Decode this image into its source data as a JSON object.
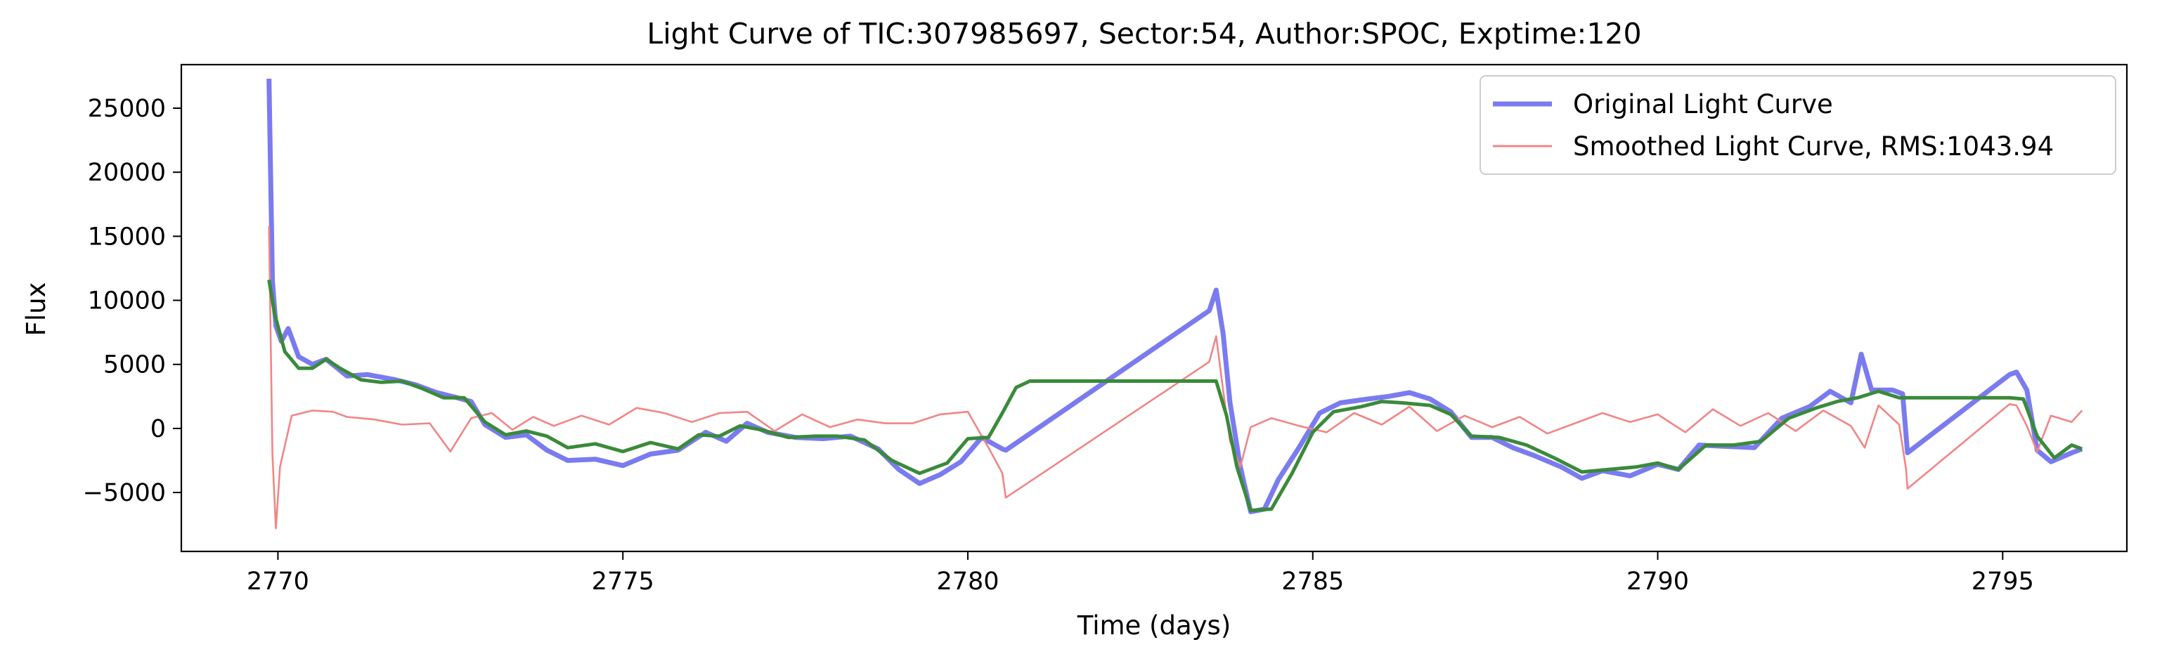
{
  "chart_data": {
    "type": "line",
    "title": "Light Curve of TIC:307985697, Sector:54, Author:SPOC, Exptime:120",
    "xlabel": "Time (days)",
    "ylabel": "Flux",
    "xlim": [
      2768.6,
      2796.8
    ],
    "ylim": [
      -9600,
      28400
    ],
    "xticks": [
      2770,
      2775,
      2780,
      2785,
      2790,
      2795
    ],
    "yticks": [
      -5000,
      0,
      5000,
      10000,
      15000,
      20000,
      25000
    ],
    "grid": false,
    "legend_position": "top-right",
    "series": [
      {
        "name": "Original Light Curve",
        "color": "#7b7bf0",
        "points": [
          [
            2769.87,
            27300
          ],
          [
            2769.92,
            11500
          ],
          [
            2769.97,
            8000
          ],
          [
            2770.05,
            6800
          ],
          [
            2770.15,
            7800
          ],
          [
            2770.3,
            5600
          ],
          [
            2770.5,
            5000
          ],
          [
            2770.7,
            5400
          ],
          [
            2771.0,
            4100
          ],
          [
            2771.3,
            4200
          ],
          [
            2771.7,
            3800
          ],
          [
            2772.0,
            3400
          ],
          [
            2772.3,
            2800
          ],
          [
            2772.6,
            2400
          ],
          [
            2772.8,
            2100
          ],
          [
            2773.0,
            300
          ],
          [
            2773.3,
            -700
          ],
          [
            2773.6,
            -500
          ],
          [
            2773.9,
            -1700
          ],
          [
            2774.2,
            -2500
          ],
          [
            2774.6,
            -2400
          ],
          [
            2775.0,
            -2900
          ],
          [
            2775.4,
            -2000
          ],
          [
            2775.8,
            -1700
          ],
          [
            2776.2,
            -300
          ],
          [
            2776.5,
            -1000
          ],
          [
            2776.8,
            400
          ],
          [
            2777.1,
            -300
          ],
          [
            2777.5,
            -700
          ],
          [
            2777.9,
            -800
          ],
          [
            2778.3,
            -600
          ],
          [
            2778.7,
            -1600
          ],
          [
            2779.0,
            -3200
          ],
          [
            2779.3,
            -4300
          ],
          [
            2779.6,
            -3600
          ],
          [
            2779.9,
            -2600
          ],
          [
            2780.2,
            -700
          ],
          [
            2780.5,
            -1600
          ],
          [
            2780.55,
            -1700
          ],
          [
            2783.5,
            9200
          ],
          [
            2783.6,
            10800
          ],
          [
            2783.7,
            7400
          ],
          [
            2783.8,
            2000
          ],
          [
            2783.95,
            -3000
          ],
          [
            2784.1,
            -6500
          ],
          [
            2784.3,
            -6300
          ],
          [
            2784.5,
            -4000
          ],
          [
            2784.8,
            -1500
          ],
          [
            2785.1,
            1200
          ],
          [
            2785.4,
            2000
          ],
          [
            2785.8,
            2300
          ],
          [
            2786.1,
            2500
          ],
          [
            2786.4,
            2800
          ],
          [
            2786.7,
            2300
          ],
          [
            2787.0,
            1300
          ],
          [
            2787.3,
            -700
          ],
          [
            2787.6,
            -700
          ],
          [
            2787.9,
            -1500
          ],
          [
            2788.2,
            -2100
          ],
          [
            2788.6,
            -3000
          ],
          [
            2788.9,
            -3900
          ],
          [
            2789.2,
            -3300
          ],
          [
            2789.6,
            -3700
          ],
          [
            2790.0,
            -2800
          ],
          [
            2790.3,
            -3200
          ],
          [
            2790.6,
            -1300
          ],
          [
            2791.0,
            -1400
          ],
          [
            2791.4,
            -1500
          ],
          [
            2791.8,
            800
          ],
          [
            2792.2,
            1700
          ],
          [
            2792.5,
            2900
          ],
          [
            2792.8,
            2000
          ],
          [
            2792.95,
            5800
          ],
          [
            2793.1,
            3000
          ],
          [
            2793.4,
            3000
          ],
          [
            2793.55,
            2700
          ],
          [
            2793.62,
            -1900
          ],
          [
            2795.1,
            4200
          ],
          [
            2795.2,
            4400
          ],
          [
            2795.35,
            3000
          ],
          [
            2795.5,
            -1700
          ],
          [
            2795.7,
            -2600
          ],
          [
            2796.0,
            -1900
          ],
          [
            2796.15,
            -1600
          ]
        ]
      },
      {
        "name": "Smoothed Light Curve, RMS:1043.94",
        "color": "#f28585",
        "points": [
          [
            2769.87,
            15800
          ],
          [
            2769.92,
            -2000
          ],
          [
            2769.97,
            -7800
          ],
          [
            2770.03,
            -3000
          ],
          [
            2770.2,
            1000
          ],
          [
            2770.5,
            1400
          ],
          [
            2770.8,
            1300
          ],
          [
            2771.0,
            900
          ],
          [
            2771.4,
            700
          ],
          [
            2771.8,
            300
          ],
          [
            2772.2,
            400
          ],
          [
            2772.5,
            -1800
          ],
          [
            2772.8,
            800
          ],
          [
            2773.1,
            1200
          ],
          [
            2773.4,
            -100
          ],
          [
            2773.7,
            900
          ],
          [
            2774.0,
            200
          ],
          [
            2774.4,
            1000
          ],
          [
            2774.8,
            300
          ],
          [
            2775.2,
            1600
          ],
          [
            2775.6,
            1200
          ],
          [
            2776.0,
            500
          ],
          [
            2776.4,
            1200
          ],
          [
            2776.8,
            1300
          ],
          [
            2777.2,
            -200
          ],
          [
            2777.6,
            1100
          ],
          [
            2778.0,
            100
          ],
          [
            2778.4,
            700
          ],
          [
            2778.8,
            400
          ],
          [
            2779.2,
            400
          ],
          [
            2779.6,
            1100
          ],
          [
            2780.0,
            1300
          ],
          [
            2780.3,
            -1500
          ],
          [
            2780.5,
            -3500
          ],
          [
            2780.55,
            -5400
          ],
          [
            2783.5,
            5200
          ],
          [
            2783.6,
            7200
          ],
          [
            2783.7,
            3000
          ],
          [
            2783.8,
            -1000
          ],
          [
            2783.95,
            -3000
          ],
          [
            2784.1,
            100
          ],
          [
            2784.4,
            800
          ],
          [
            2784.8,
            200
          ],
          [
            2785.2,
            -300
          ],
          [
            2785.6,
            1200
          ],
          [
            2786.0,
            300
          ],
          [
            2786.4,
            1700
          ],
          [
            2786.8,
            -200
          ],
          [
            2787.2,
            1000
          ],
          [
            2787.6,
            100
          ],
          [
            2788.0,
            900
          ],
          [
            2788.4,
            -400
          ],
          [
            2788.8,
            400
          ],
          [
            2789.2,
            1200
          ],
          [
            2789.6,
            500
          ],
          [
            2790.0,
            1100
          ],
          [
            2790.4,
            -300
          ],
          [
            2790.8,
            1500
          ],
          [
            2791.2,
            200
          ],
          [
            2791.6,
            1200
          ],
          [
            2792.0,
            -200
          ],
          [
            2792.4,
            1400
          ],
          [
            2792.8,
            200
          ],
          [
            2793.0,
            -1500
          ],
          [
            2793.2,
            1800
          ],
          [
            2793.5,
            300
          ],
          [
            2793.6,
            -3200
          ],
          [
            2793.62,
            -4700
          ],
          [
            2795.1,
            1900
          ],
          [
            2795.2,
            1800
          ],
          [
            2795.35,
            200
          ],
          [
            2795.5,
            -1800
          ],
          [
            2795.7,
            1000
          ],
          [
            2796.0,
            500
          ],
          [
            2796.15,
            1400
          ]
        ]
      },
      {
        "name": "",
        "color": "#3a8a3a",
        "points": [
          [
            2769.87,
            11600
          ],
          [
            2769.95,
            9000
          ],
          [
            2770.1,
            6000
          ],
          [
            2770.3,
            4700
          ],
          [
            2770.5,
            4700
          ],
          [
            2770.7,
            5400
          ],
          [
            2770.9,
            4700
          ],
          [
            2771.2,
            3800
          ],
          [
            2771.5,
            3600
          ],
          [
            2771.8,
            3700
          ],
          [
            2772.1,
            3100
          ],
          [
            2772.4,
            2400
          ],
          [
            2772.7,
            2400
          ],
          [
            2773.0,
            500
          ],
          [
            2773.3,
            -500
          ],
          [
            2773.6,
            -200
          ],
          [
            2773.9,
            -600
          ],
          [
            2774.2,
            -1500
          ],
          [
            2774.6,
            -1200
          ],
          [
            2775.0,
            -1800
          ],
          [
            2775.4,
            -1100
          ],
          [
            2775.8,
            -1600
          ],
          [
            2776.1,
            -500
          ],
          [
            2776.4,
            -600
          ],
          [
            2776.7,
            200
          ],
          [
            2777.0,
            -100
          ],
          [
            2777.4,
            -700
          ],
          [
            2777.8,
            -600
          ],
          [
            2778.1,
            -600
          ],
          [
            2778.5,
            -900
          ],
          [
            2778.9,
            -2500
          ],
          [
            2779.3,
            -3500
          ],
          [
            2779.7,
            -2700
          ],
          [
            2780.0,
            -800
          ],
          [
            2780.3,
            -700
          ],
          [
            2780.5,
            1200
          ],
          [
            2780.7,
            3200
          ],
          [
            2780.9,
            3700
          ],
          [
            2783.4,
            3700
          ],
          [
            2783.6,
            3700
          ],
          [
            2783.75,
            1000
          ],
          [
            2783.9,
            -3000
          ],
          [
            2784.1,
            -6400
          ],
          [
            2784.4,
            -6300
          ],
          [
            2784.7,
            -3500
          ],
          [
            2785.0,
            -300
          ],
          [
            2785.3,
            1300
          ],
          [
            2785.7,
            1700
          ],
          [
            2786.0,
            2100
          ],
          [
            2786.3,
            2000
          ],
          [
            2786.7,
            1800
          ],
          [
            2787.0,
            1100
          ],
          [
            2787.3,
            -600
          ],
          [
            2787.7,
            -700
          ],
          [
            2788.1,
            -1300
          ],
          [
            2788.5,
            -2300
          ],
          [
            2788.9,
            -3400
          ],
          [
            2789.3,
            -3200
          ],
          [
            2789.7,
            -3000
          ],
          [
            2790.0,
            -2700
          ],
          [
            2790.3,
            -3200
          ],
          [
            2790.7,
            -1300
          ],
          [
            2791.1,
            -1300
          ],
          [
            2791.5,
            -1000
          ],
          [
            2791.9,
            800
          ],
          [
            2792.3,
            1600
          ],
          [
            2792.6,
            2100
          ],
          [
            2792.9,
            2400
          ],
          [
            2793.2,
            2900
          ],
          [
            2793.5,
            2400
          ],
          [
            2795.1,
            2400
          ],
          [
            2795.3,
            2300
          ],
          [
            2795.5,
            -600
          ],
          [
            2795.75,
            -2300
          ],
          [
            2796.0,
            -1300
          ],
          [
            2796.15,
            -1600
          ]
        ]
      }
    ]
  }
}
